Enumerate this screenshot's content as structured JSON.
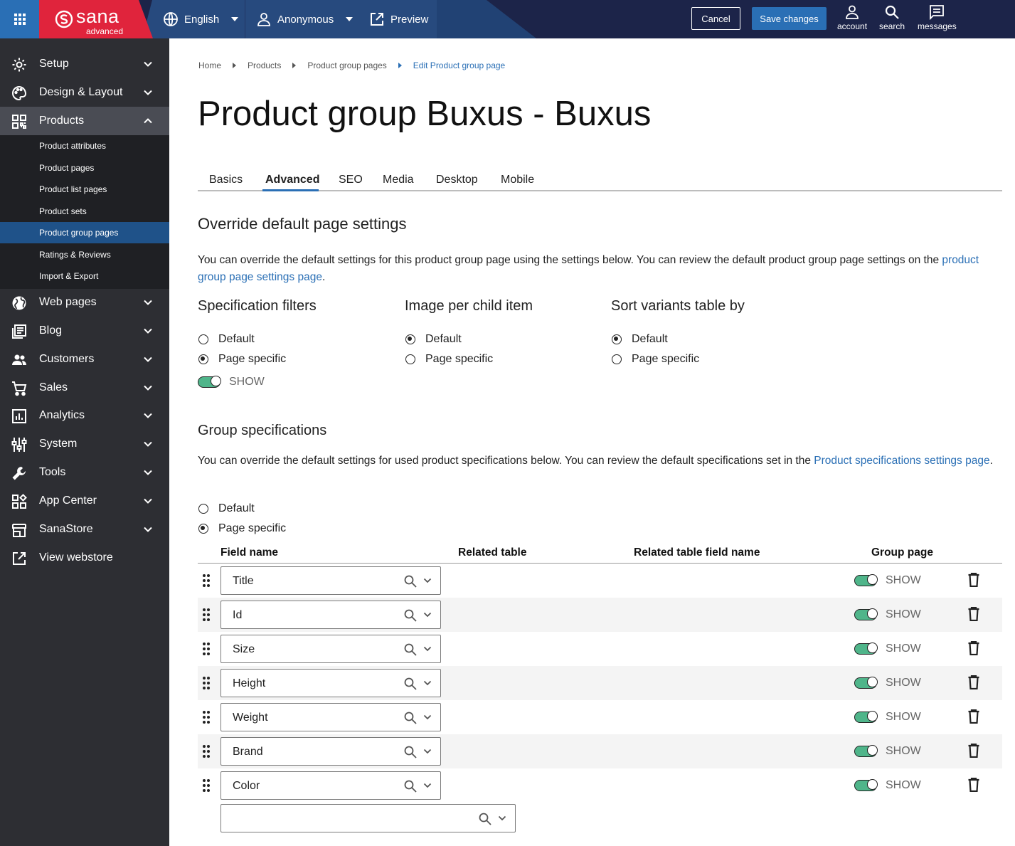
{
  "topbar": {
    "logo_word": "sana",
    "logo_sub": "advanced",
    "language": "English",
    "user": "Anonymous",
    "preview": "Preview",
    "cancel": "Cancel",
    "save": "Save changes",
    "account": "account",
    "search": "search",
    "messages": "messages"
  },
  "sidebar": {
    "items": [
      {
        "label": "Setup",
        "icon": "gear-icon"
      },
      {
        "label": "Design & Layout",
        "icon": "palette-icon"
      },
      {
        "label": "Products",
        "icon": "products-grid-icon"
      },
      {
        "label": "Web pages",
        "icon": "globe-icon"
      },
      {
        "label": "Blog",
        "icon": "blog-icon"
      },
      {
        "label": "Customers",
        "icon": "customers-icon"
      },
      {
        "label": "Sales",
        "icon": "cart-icon"
      },
      {
        "label": "Analytics",
        "icon": "analytics-icon"
      },
      {
        "label": "System",
        "icon": "sliders-icon"
      },
      {
        "label": "Tools",
        "icon": "wrench-icon"
      },
      {
        "label": "App Center",
        "icon": "app-center-icon"
      },
      {
        "label": "SanaStore",
        "icon": "store-icon"
      },
      {
        "label": "View webstore",
        "icon": "external-link-icon"
      }
    ],
    "sub_items": [
      "Product attributes",
      "Product pages",
      "Product list pages",
      "Product sets",
      "Product group pages",
      "Ratings & Reviews",
      "Import & Export"
    ]
  },
  "breadcrumb": {
    "home": "Home",
    "products": "Products",
    "group_pages": "Product group pages",
    "current": "Edit Product group page"
  },
  "page_title": "Product group Buxus - Buxus",
  "tabs": [
    "Basics",
    "Advanced",
    "SEO",
    "Media",
    "Desktop",
    "Mobile"
  ],
  "override": {
    "heading": "Override default page settings",
    "text": "You can override the default settings for this product group page using the settings below. You can review the default product group page settings on the",
    "link": "product group page settings page",
    "tail": ".",
    "spec_filters": {
      "title": "Specification filters",
      "opt1": "Default",
      "opt2": "Page specific",
      "toggle": "SHOW"
    },
    "image_per_child": {
      "title": "Image per child item",
      "opt1": "Default",
      "opt2": "Page specific"
    },
    "sort_variants": {
      "title": "Sort variants table by",
      "opt1": "Default",
      "opt2": "Page specific"
    }
  },
  "group_specs": {
    "heading": "Group specifications",
    "text": "You can override the default settings for used product specifications below. You can review the default specifications set in the",
    "link1": "Product specifications settings",
    "link2": "page",
    "tail": ".",
    "opt1": "Default",
    "opt2": "Page specific",
    "columns": {
      "field_name": "Field name",
      "related_table": "Related table",
      "related_field": "Related table field name",
      "group_page": "Group page"
    },
    "rows": [
      {
        "field": "Title",
        "toggle": "SHOW"
      },
      {
        "field": "Id",
        "toggle": "SHOW"
      },
      {
        "field": "Size",
        "toggle": "SHOW"
      },
      {
        "field": "Height",
        "toggle": "SHOW"
      },
      {
        "field": "Weight",
        "toggle": "SHOW"
      },
      {
        "field": "Brand",
        "toggle": "SHOW"
      },
      {
        "field": "Color",
        "toggle": "SHOW"
      }
    ]
  },
  "colors": {
    "topbar": "#1c2449",
    "brand_red": "#e0243c",
    "accent_blue": "#2a6fb5",
    "sidebar": "#2d2e33",
    "toggle_green": "#4fb58a"
  }
}
